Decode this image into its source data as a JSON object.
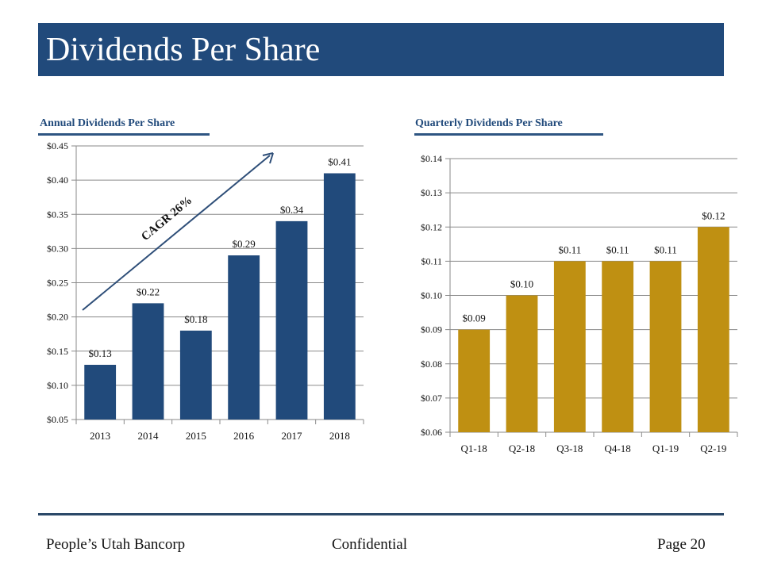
{
  "page": {
    "title": "Dividends Per Share",
    "accent_color": "#214a7b",
    "footer": {
      "company": "People’s Utah Bancorp",
      "classification": "Confidential",
      "page_label": "Page 20"
    }
  },
  "chart_data": [
    {
      "type": "bar",
      "title": "Annual  Dividends Per Share",
      "categories": [
        "2013",
        "2014",
        "2015",
        "2016",
        "2017",
        "2018"
      ],
      "values": [
        0.13,
        0.22,
        0.18,
        0.29,
        0.34,
        0.41
      ],
      "data_labels": [
        "$0.13",
        "$0.22",
        "$0.18",
        "$0.29",
        "$0.34",
        "$0.41"
      ],
      "xlabel": "",
      "ylabel": "",
      "ylim": [
        0.05,
        0.45
      ],
      "yticks": [
        0.05,
        0.1,
        0.15,
        0.2,
        0.25,
        0.3,
        0.35,
        0.4,
        0.45
      ],
      "ytick_labels": [
        "$0.05",
        "$0.10",
        "$0.15",
        "$0.20",
        "$0.25",
        "$0.30",
        "$0.35",
        "$0.40",
        "$0.45"
      ],
      "grid": true,
      "bar_color": "#214a7b",
      "annotation": {
        "text": "CAGR 26%",
        "kind": "upward-arrow"
      }
    },
    {
      "type": "bar",
      "title": "Quarterly Dividends Per Share",
      "categories": [
        "Q1-18",
        "Q2-18",
        "Q3-18",
        "Q4-18",
        "Q1-19",
        "Q2-19"
      ],
      "values": [
        0.09,
        0.1,
        0.11,
        0.11,
        0.11,
        0.12
      ],
      "data_labels": [
        "$0.09",
        "$0.10",
        "$0.11",
        "$0.11",
        "$0.11",
        "$0.12"
      ],
      "xlabel": "",
      "ylabel": "",
      "ylim": [
        0.06,
        0.14
      ],
      "yticks": [
        0.06,
        0.07,
        0.08,
        0.09,
        0.1,
        0.11,
        0.12,
        0.13,
        0.14
      ],
      "ytick_labels": [
        "$0.06",
        "$0.07",
        "$0.08",
        "$0.09",
        "$0.10",
        "$0.11",
        "$0.12",
        "$0.13",
        "$0.14"
      ],
      "grid": true,
      "bar_color": "#bf9012"
    }
  ]
}
